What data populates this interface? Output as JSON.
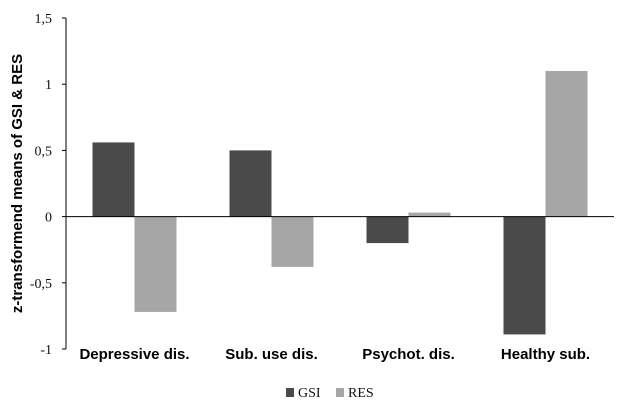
{
  "chart_data": {
    "type": "bar",
    "ylabel": "z-transformend means of GSI & RES",
    "xlabel": "",
    "ylim": [
      -1,
      1.5
    ],
    "yticks": [
      -1,
      -0.5,
      0,
      0.5,
      1,
      1.5
    ],
    "ytick_labels": [
      "-1",
      "-0,5",
      "0",
      "0,5",
      "1",
      "1,5"
    ],
    "categories": [
      "Depressive dis.",
      "Sub. use dis.",
      "Psychot. dis.",
      "Healthy sub."
    ],
    "series": [
      {
        "name": "GSI",
        "color": "#4a4a4a",
        "values": [
          0.56,
          0.5,
          -0.2,
          -0.89
        ]
      },
      {
        "name": "RES",
        "color": "#a6a6a6",
        "values": [
          -0.72,
          -0.38,
          0.03,
          1.1
        ]
      }
    ],
    "grid": false,
    "legend_position": "bottom-center"
  }
}
